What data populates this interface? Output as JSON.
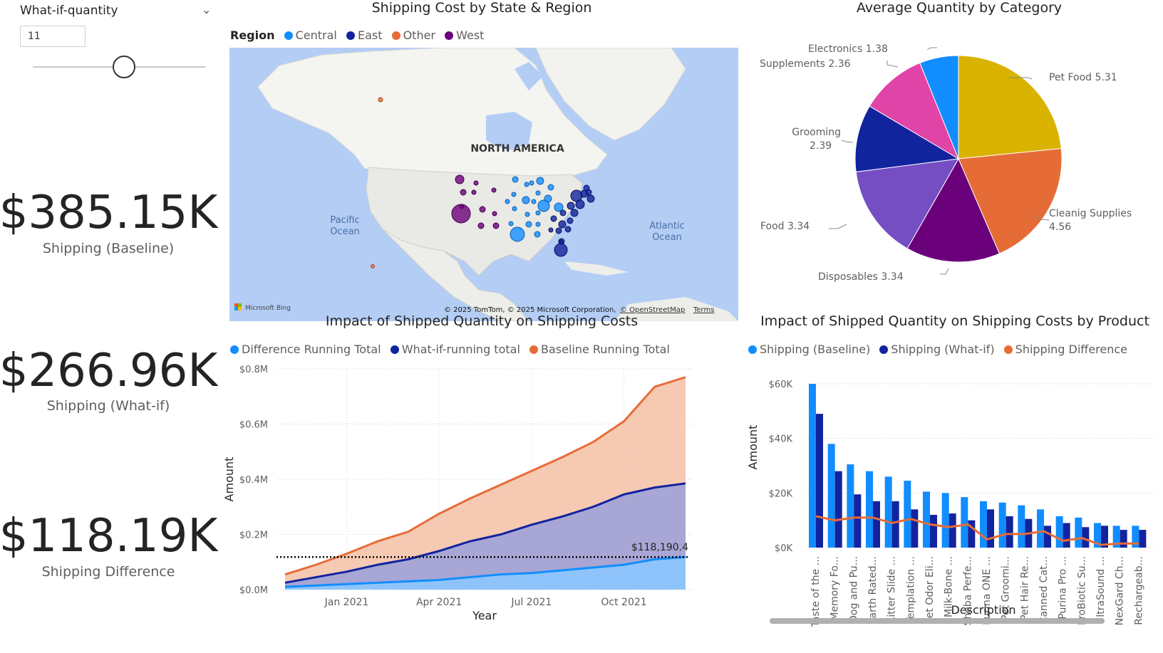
{
  "slicer": {
    "title": "What-if-quantity",
    "value": "11"
  },
  "cards": [
    {
      "value": "$385.15K",
      "label": "Shipping (Baseline)"
    },
    {
      "value": "$266.96K",
      "label": "Shipping (What-if)"
    },
    {
      "value": "$118.19K",
      "label": "Shipping Difference"
    }
  ],
  "colors": {
    "central": "#118dff",
    "east": "#12239e",
    "other": "#e66c37",
    "west": "#6b007b",
    "pie_pet_food": "#d9b300"
  },
  "map": {
    "title": "Shipping Cost by State & Region",
    "legend_title": "Region",
    "legend": [
      "Central",
      "East",
      "Other",
      "West"
    ],
    "labels": {
      "continent": "NORTH AMERICA",
      "pacific_1": "Pacific",
      "pacific_2": "Ocean",
      "atlantic_1": "Atlantic",
      "atlantic_2": "Ocean"
    },
    "provider": "Microsoft Bing",
    "copyright": "© 2025 TomTom, © 2025 Microsoft Corporation,",
    "osm": "© OpenStreetMap",
    "terms": "Terms"
  },
  "chart_data": [
    {
      "type": "pie",
      "title": "Average Quantity by Category",
      "categories": [
        "Pet Food",
        "Cleanig Supplies",
        "Disposables",
        "Food",
        "Grooming",
        "Supplements",
        "Electronics"
      ],
      "values": [
        5.31,
        4.56,
        3.34,
        3.34,
        2.39,
        2.36,
        1.38
      ],
      "labels": [
        "Pet Food 5.31",
        "Cleanig Supplies",
        "4.56",
        "Disposables 3.34",
        "Food 3.34",
        "Grooming",
        "2.39",
        "Supplements 2.36",
        "Electronics 1.38"
      ]
    },
    {
      "type": "area",
      "title": "Impact of Shipped Quantity on Shipping Costs",
      "xlabel": "Year",
      "ylabel": "Amount",
      "x_ticks": [
        "Jan 2021",
        "Apr 2021",
        "Jul 2021",
        "Oct 2021"
      ],
      "y_ticks": [
        "$0.0M",
        "$0.2M",
        "$0.4M",
        "$0.6M",
        "$0.8M"
      ],
      "ylim": [
        0,
        0.8
      ],
      "x": [
        "2020-11",
        "2020-12",
        "2021-01",
        "2021-02",
        "2021-03",
        "2021-04",
        "2021-05",
        "2021-06",
        "2021-07",
        "2021-08",
        "2021-09",
        "2021-10",
        "2021-11",
        "2021-12"
      ],
      "series": [
        {
          "name": "Difference Running Total",
          "values": [
            0.01,
            0.015,
            0.02,
            0.025,
            0.03,
            0.035,
            0.045,
            0.055,
            0.06,
            0.07,
            0.08,
            0.09,
            0.11,
            0.118
          ]
        },
        {
          "name": "What-if-running total",
          "values": [
            0.025,
            0.045,
            0.065,
            0.09,
            0.11,
            0.14,
            0.175,
            0.2,
            0.235,
            0.265,
            0.3,
            0.345,
            0.37,
            0.385
          ]
        },
        {
          "name": "Baseline Running Total",
          "values": [
            0.055,
            0.09,
            0.13,
            0.175,
            0.21,
            0.275,
            0.33,
            0.38,
            0.43,
            0.48,
            0.535,
            0.61,
            0.735,
            0.77
          ]
        }
      ],
      "reference_line": {
        "value": 0.11819,
        "label": "$118,190.4"
      }
    },
    {
      "type": "bar",
      "title": "Impact of Shipped Quantity on Shipping Costs by Product",
      "xlabel": "Description",
      "ylabel": "Amount",
      "y_ticks": [
        "$0K",
        "$20K",
        "$40K",
        "$60K"
      ],
      "ylim": [
        0,
        60000
      ],
      "categories": [
        "Taste of the ...",
        "Memory Fo...",
        "Dog and Pu...",
        "Earth Rated...",
        "Litter Slide ...",
        "Templation ...",
        "Pet Odor Eli...",
        "Milk-Bone ...",
        "Sheba Perfe...",
        "Purina ONE ...",
        "Pet Groomi...",
        "Pet Hair Re...",
        "Canned Cat...",
        "Purina Pro ...",
        "ProBiotic Su...",
        "UltraSound ...",
        "NexGard Ch...",
        "Rechargeab..."
      ],
      "series": [
        {
          "name": "Shipping (Baseline)",
          "values": [
            60000,
            38000,
            30500,
            28000,
            26000,
            24500,
            20500,
            20000,
            18500,
            17000,
            16500,
            15500,
            14000,
            11500,
            11000,
            9000,
            8000,
            8000
          ]
        },
        {
          "name": "Shipping (What-if)",
          "values": [
            49000,
            28000,
            19500,
            17000,
            17000,
            14000,
            12000,
            12500,
            10000,
            14000,
            11500,
            10500,
            8000,
            9000,
            7500,
            8000,
            6500,
            6500
          ]
        },
        {
          "name": "Shipping Difference",
          "values": [
            11500,
            10000,
            11000,
            11000,
            9000,
            10500,
            8500,
            7500,
            8500,
            3000,
            5000,
            5000,
            6000,
            2500,
            3500,
            1000,
            1500,
            1500
          ]
        }
      ]
    }
  ]
}
